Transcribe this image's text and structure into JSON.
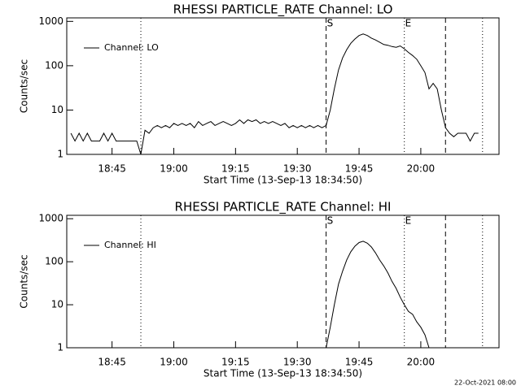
{
  "chart_data": [
    {
      "type": "line",
      "title": "RHESSI PARTICLE_RATE Channel: LO",
      "xlabel": "Start Time (13-Sep-13 18:34:50)",
      "ylabel": "Counts/sec",
      "log_y": true,
      "legend": "upper left",
      "xlim": [
        "18:34",
        "20:19"
      ],
      "ylim": [
        1,
        1200
      ],
      "xticks": [
        "18:45",
        "19:00",
        "19:15",
        "19:30",
        "19:45",
        "20:00"
      ],
      "yticks": [
        1,
        10,
        100,
        1000
      ],
      "vlines": [
        {
          "x": "18:52",
          "style": "dotted"
        },
        {
          "x": "19:37",
          "style": "dashed"
        },
        {
          "x": "19:56",
          "style": "dotted"
        },
        {
          "x": "20:06",
          "style": "dashed"
        },
        {
          "x": "20:15",
          "style": "dotted"
        }
      ],
      "annotations": [
        {
          "text": "S",
          "x": "19:37"
        },
        {
          "text": "E",
          "x": "19:56"
        }
      ],
      "x": [
        "18:35",
        "18:36",
        "18:37",
        "18:38",
        "18:39",
        "18:40",
        "18:41",
        "18:42",
        "18:43",
        "18:44",
        "18:45",
        "18:46",
        "18:47",
        "18:48",
        "18:49",
        "18:50",
        "18:51",
        "18:52",
        "18:53",
        "18:54",
        "18:55",
        "18:56",
        "18:57",
        "18:58",
        "18:59",
        "19:00",
        "19:01",
        "19:02",
        "19:03",
        "19:04",
        "19:05",
        "19:06",
        "19:07",
        "19:08",
        "19:09",
        "19:10",
        "19:11",
        "19:12",
        "19:13",
        "19:14",
        "19:15",
        "19:16",
        "19:17",
        "19:18",
        "19:19",
        "19:20",
        "19:21",
        "19:22",
        "19:23",
        "19:24",
        "19:25",
        "19:26",
        "19:27",
        "19:28",
        "19:29",
        "19:30",
        "19:31",
        "19:32",
        "19:33",
        "19:34",
        "19:35",
        "19:36",
        "19:37",
        "19:38",
        "19:39",
        "19:40",
        "19:41",
        "19:42",
        "19:43",
        "19:44",
        "19:45",
        "19:46",
        "19:47",
        "19:48",
        "19:49",
        "19:50",
        "19:51",
        "19:52",
        "19:53",
        "19:54",
        "19:55",
        "19:56",
        "19:57",
        "19:58",
        "19:59",
        "20:00",
        "20:01",
        "20:02",
        "20:03",
        "20:04",
        "20:05",
        "20:06",
        "20:07",
        "20:08",
        "20:09",
        "20:10",
        "20:11",
        "20:12",
        "20:13",
        "20:14"
      ],
      "series": [
        {
          "name": "Channel: LO",
          "color": "#000000",
          "values": [
            3,
            2,
            3,
            2,
            3,
            2,
            2,
            2,
            3,
            2,
            3,
            2,
            2,
            2,
            2,
            2,
            2,
            1,
            3.5,
            3,
            4,
            4.5,
            4,
            4.5,
            4,
            5,
            4.5,
            5,
            4.5,
            5,
            4,
            5.5,
            4.5,
            5,
            5.5,
            4.5,
            5,
            5.5,
            5,
            4.5,
            5,
            6,
            5,
            6,
            5.5,
            6,
            5,
            5.5,
            5,
            5.5,
            5,
            4.5,
            5,
            4,
            4.5,
            4,
            4.5,
            4,
            4.5,
            4,
            4.5,
            4,
            4.5,
            10,
            30,
            80,
            150,
            230,
            320,
            400,
            480,
            520,
            480,
            420,
            380,
            340,
            300,
            290,
            270,
            260,
            280,
            240,
            200,
            170,
            140,
            100,
            70,
            30,
            40,
            30,
            10,
            4,
            3,
            2.5,
            3,
            3,
            3,
            2,
            3,
            3
          ]
        }
      ]
    },
    {
      "type": "line",
      "title": "RHESSI PARTICLE_RATE Channel: HI",
      "xlabel": "Start Time (13-Sep-13 18:34:50)",
      "ylabel": "Counts/sec",
      "log_y": true,
      "legend": "upper left",
      "xlim": [
        "18:34",
        "20:19"
      ],
      "ylim": [
        1,
        1200
      ],
      "xticks": [
        "18:45",
        "19:00",
        "19:15",
        "19:30",
        "19:45",
        "20:00"
      ],
      "yticks": [
        1,
        10,
        100,
        1000
      ],
      "vlines": [
        {
          "x": "18:52",
          "style": "dotted"
        },
        {
          "x": "19:37",
          "style": "dashed"
        },
        {
          "x": "19:56",
          "style": "dotted"
        },
        {
          "x": "20:06",
          "style": "dashed"
        },
        {
          "x": "20:15",
          "style": "dotted"
        }
      ],
      "annotations": [
        {
          "text": "S",
          "x": "19:37"
        },
        {
          "text": "E",
          "x": "19:56"
        }
      ],
      "x": [
        "19:37",
        "19:38",
        "19:39",
        "19:40",
        "19:41",
        "19:42",
        "19:43",
        "19:44",
        "19:45",
        "19:46",
        "19:47",
        "19:48",
        "19:49",
        "19:50",
        "19:51",
        "19:52",
        "19:53",
        "19:54",
        "19:55",
        "19:56",
        "19:57",
        "19:58",
        "19:59",
        "20:00",
        "20:01",
        "20:02"
      ],
      "series": [
        {
          "name": "Channel: HI",
          "color": "#000000",
          "values": [
            1,
            3,
            10,
            30,
            60,
            110,
            170,
            230,
            280,
            300,
            270,
            220,
            160,
            110,
            80,
            55,
            35,
            24,
            15,
            10,
            7,
            6,
            4,
            3,
            2,
            1
          ]
        }
      ]
    }
  ],
  "footer": "22-Oct-2021 08:00"
}
